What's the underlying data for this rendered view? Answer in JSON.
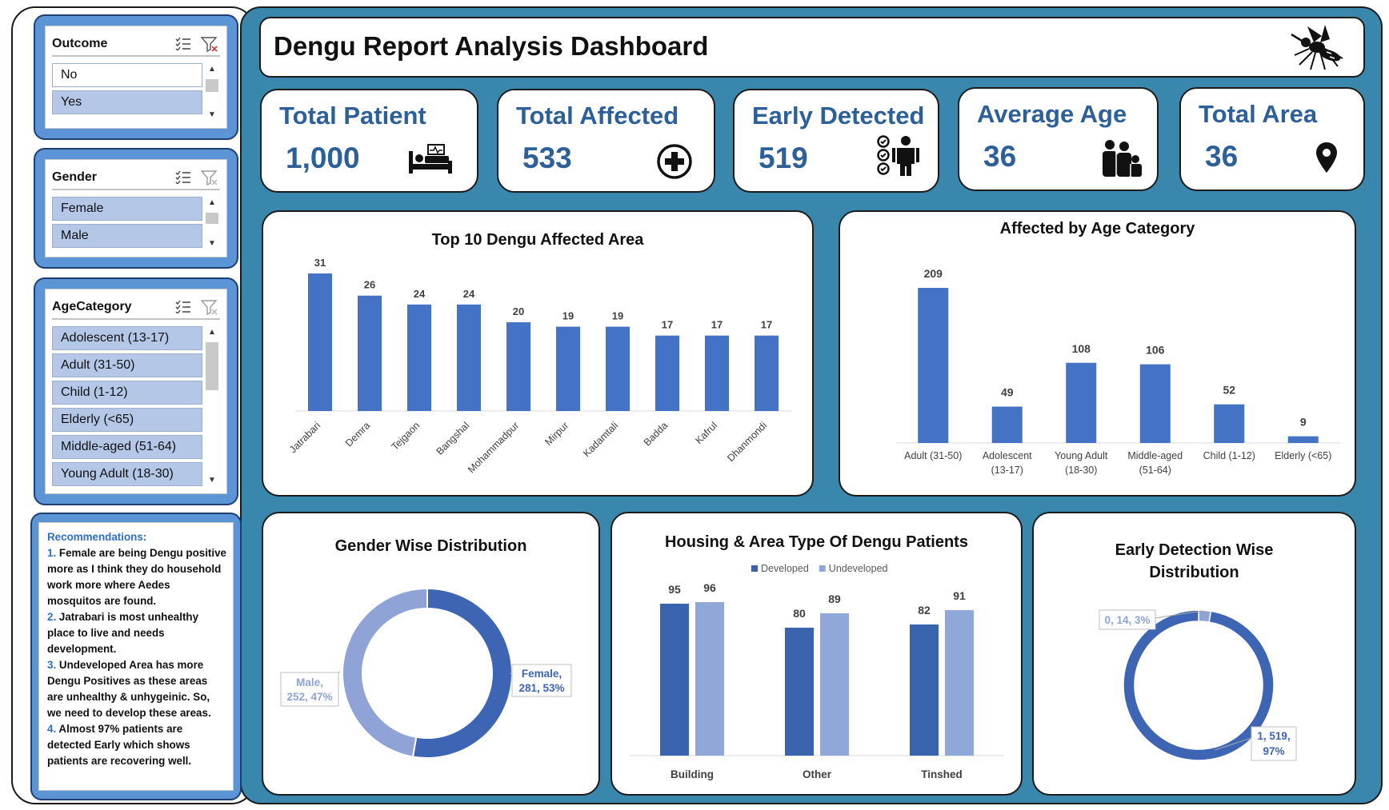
{
  "slicers": {
    "outcome": {
      "title": "Outcome",
      "items": [
        {
          "label": "No",
          "selected": false
        },
        {
          "label": "Yes",
          "selected": true
        }
      ]
    },
    "gender": {
      "title": "Gender",
      "items": [
        {
          "label": "Female",
          "selected": true
        },
        {
          "label": "Male",
          "selected": true
        }
      ]
    },
    "age_category": {
      "title": "AgeCategory",
      "items": [
        {
          "label": "Adolescent (13-17)",
          "selected": true
        },
        {
          "label": "Adult (31-50)",
          "selected": true
        },
        {
          "label": "Child (1-12)",
          "selected": true
        },
        {
          "label": "Elderly (<65)",
          "selected": true
        },
        {
          "label": "Middle-aged (51-64)",
          "selected": true
        },
        {
          "label": "Young Adult (18-30)",
          "selected": true
        }
      ]
    }
  },
  "recommendations": {
    "title": "Recommendations:",
    "items": [
      {
        "num": "1.",
        "text": "Female are being Dengu positive more as I think they do household work more where Aedes mosquitos are found."
      },
      {
        "num": "2.",
        "text": "Jatrabari is most unhealthy place to live and needs development."
      },
      {
        "num": "3.",
        "text": "Undeveloped Area has more Dengu Positives as these areas are unhealthy & unhygeinic. So, we need to develop these areas."
      },
      {
        "num": "4.",
        "text": "Almost 97% patients are detected Early which shows patients are recovering well."
      }
    ]
  },
  "header": {
    "title": "Dengu Report Analysis Dashboard",
    "icon": "mosquito-icon"
  },
  "kpis": {
    "total_patient": {
      "title": "Total Patient",
      "value": "1,000",
      "icon": "hospital-bed-icon"
    },
    "total_affected": {
      "title": "Total Affected",
      "value": "533",
      "icon": "medical-cross-icon"
    },
    "early_detected": {
      "title": "Early Detected",
      "value": "519",
      "icon": "checklist-person-icon"
    },
    "average_age": {
      "title": "Average Age",
      "value": "36",
      "icon": "family-icon"
    },
    "total_area": {
      "title": "Total Area",
      "value": "36",
      "icon": "location-pin-icon"
    }
  },
  "colors": {
    "primary_bar": "#4472c4",
    "dark_blue": "#3a63ae",
    "light_blue": "#8fa8d8",
    "background": "#3a87ae",
    "kpi_text": "#2d5f98"
  },
  "chart_data": [
    {
      "type": "bar",
      "title": "Top 10 Dengu Affected Area",
      "categories": [
        "Jatrabari",
        "Demra",
        "Tejgaon",
        "Bangshal",
        "Mohammadpur",
        "Mirpur",
        "Kadamtali",
        "Badda",
        "Kafrul",
        "Dhanmondi"
      ],
      "values": [
        31,
        26,
        24,
        24,
        20,
        19,
        19,
        17,
        17,
        17
      ],
      "ylim": [
        0,
        35
      ],
      "grid": false,
      "data_labels": true
    },
    {
      "type": "bar",
      "title": "Affected by Age Category",
      "categories": [
        [
          "Adult (31-50)"
        ],
        [
          "Adolescent",
          "(13-17)"
        ],
        [
          "Young Adult",
          "(18-30)"
        ],
        [
          "Middle-aged",
          "(51-64)"
        ],
        [
          "Child (1-12)"
        ],
        [
          "Elderly (<65)"
        ]
      ],
      "values": [
        209,
        49,
        108,
        106,
        52,
        9
      ],
      "ylim": [
        0,
        230
      ],
      "grid": false,
      "data_labels": true
    },
    {
      "type": "pie",
      "title": "Gender Wise Distribution",
      "donut": true,
      "slices": [
        {
          "name": "Female",
          "value": 281,
          "percent": "53%",
          "label": [
            "Female,",
            "281, 53%"
          ],
          "color": "#3d65b4"
        },
        {
          "name": "Male",
          "value": 252,
          "percent": "47%",
          "label": [
            "Male,",
            "252, 47%"
          ],
          "color": "#8fa3d6"
        }
      ]
    },
    {
      "type": "bar",
      "title": "Housing & Area Type Of Dengu Patients",
      "categories": [
        "Building",
        "Other",
        "Tinshed"
      ],
      "series": [
        {
          "name": "Developed",
          "values": [
            95,
            80,
            82
          ],
          "color": "#3a63ae"
        },
        {
          "name": "Undeveloped",
          "values": [
            96,
            89,
            91
          ],
          "color": "#8fa8d8"
        }
      ],
      "ylim": [
        0,
        100
      ],
      "legend": "top",
      "grid": false,
      "data_labels": true
    },
    {
      "type": "pie",
      "title": [
        "Early Detection Wise",
        "Distribution"
      ],
      "donut": true,
      "slices": [
        {
          "name": "0",
          "value": 14,
          "percent": "3%",
          "label": [
            "0, 14, 3%"
          ],
          "color": "#8fa3d6"
        },
        {
          "name": "1",
          "value": 519,
          "percent": "97%",
          "label": [
            "1, 519,",
            "97%"
          ],
          "color": "#3d65b4"
        }
      ]
    }
  ]
}
